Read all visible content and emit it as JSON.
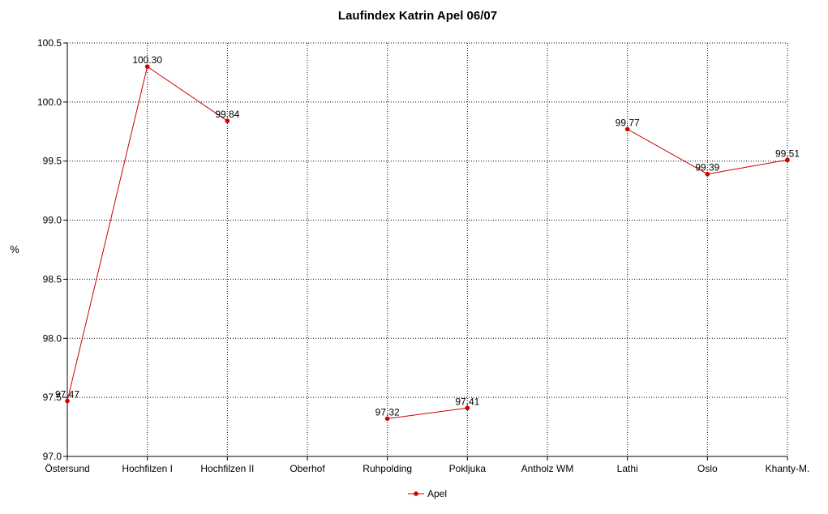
{
  "chart_data": {
    "type": "line",
    "title": "Laufindex Katrin Apel 06/07",
    "xlabel": "",
    "ylabel": "%",
    "categories": [
      "Östersund",
      "Hochfilzen I",
      "Hochfilzen II",
      "Oberhof",
      "Ruhpolding",
      "Pokljuka",
      "Antholz WM",
      "Lathi",
      "Oslo",
      "Khanty-M."
    ],
    "series": [
      {
        "name": "Apel",
        "color": "#cc0000",
        "values": [
          97.47,
          100.3,
          99.84,
          null,
          97.32,
          97.41,
          null,
          99.77,
          99.39,
          99.51
        ],
        "labels": [
          "97.47",
          "100.30",
          "99.84",
          "",
          "97.32",
          "97.41",
          "",
          "99.77",
          "99.39",
          "99.51"
        ]
      }
    ],
    "ylim": [
      97.0,
      100.5
    ],
    "yticks": [
      "97.0",
      "97.5",
      "98.0",
      "98.5",
      "99.0",
      "99.5",
      "100.0",
      "100.5"
    ],
    "grid": true,
    "legend": "bottom-center"
  }
}
